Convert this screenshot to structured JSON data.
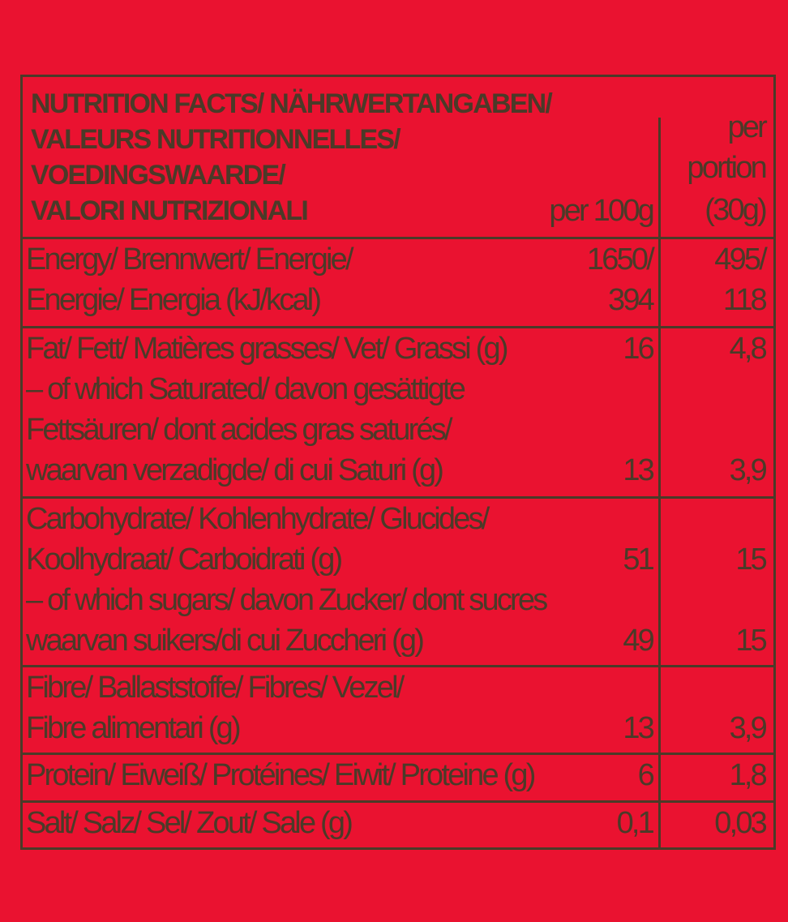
{
  "header": {
    "title_lines": [
      "NUTRITION FACTS/ NÄHRWERTANGABEN/",
      "VALEURS NUTRITIONNELLES/",
      "VOEDINGSWAARDE/",
      "VALORI NUTRIZIONALI"
    ],
    "per100_label": "per 100g",
    "portion_label_lines": [
      "per",
      "portion",
      "(30g)"
    ]
  },
  "colors": {
    "background": "#ea1230",
    "text": "#4b3a28"
  },
  "rows": [
    {
      "lines": [
        {
          "label": "Energy/ Brennwert/ Energie/",
          "per100": "1650/",
          "portion": "495/"
        },
        {
          "label": "Energie/ Energia (kJ/kcal)",
          "per100": "394",
          "portion": "118"
        }
      ]
    },
    {
      "lines": [
        {
          "label": "Fat/ Fett/ Matières grasses/ Vet/ Grassi (g)",
          "per100": "16",
          "portion": "4,8"
        },
        {
          "label": "– of which Saturated/ davon gesättigte",
          "per100": "",
          "portion": ""
        },
        {
          "label": "Fettsäuren/ dont acides gras saturés/",
          "per100": "",
          "portion": ""
        },
        {
          "label": "waarvan verzadigde/ di cui Saturi (g)",
          "per100": "13",
          "portion": "3,9"
        }
      ]
    },
    {
      "lines": [
        {
          "label": "Carbohydrate/ Kohlenhydrate/ Glucides/",
          "per100": "",
          "portion": ""
        },
        {
          "label": "Koolhydraat/ Carboidrati (g)",
          "per100": "51",
          "portion": "15"
        },
        {
          "label": "– of which sugars/ davon Zucker/ dont sucres",
          "per100": "",
          "portion": ""
        },
        {
          "label": "waarvan suikers/di cui Zuccheri (g)",
          "per100": "49",
          "portion": "15"
        }
      ]
    },
    {
      "lines": [
        {
          "label": "Fibre/ Ballaststoffe/ Fibres/ Vezel/",
          "per100": "",
          "portion": ""
        },
        {
          "label": "Fibre alimentari (g)",
          "per100": "13",
          "portion": "3,9"
        }
      ]
    },
    {
      "lines": [
        {
          "label": "Protein/ Eiweiß/ Protéines/ Eiwit/ Proteine (g)",
          "per100": "6",
          "portion": "1,8"
        }
      ]
    },
    {
      "lines": [
        {
          "label": "Salt/ Salz/ Sel/ Zout/ Sale (g)",
          "per100": "0,1",
          "portion": "0,03"
        }
      ]
    }
  ]
}
